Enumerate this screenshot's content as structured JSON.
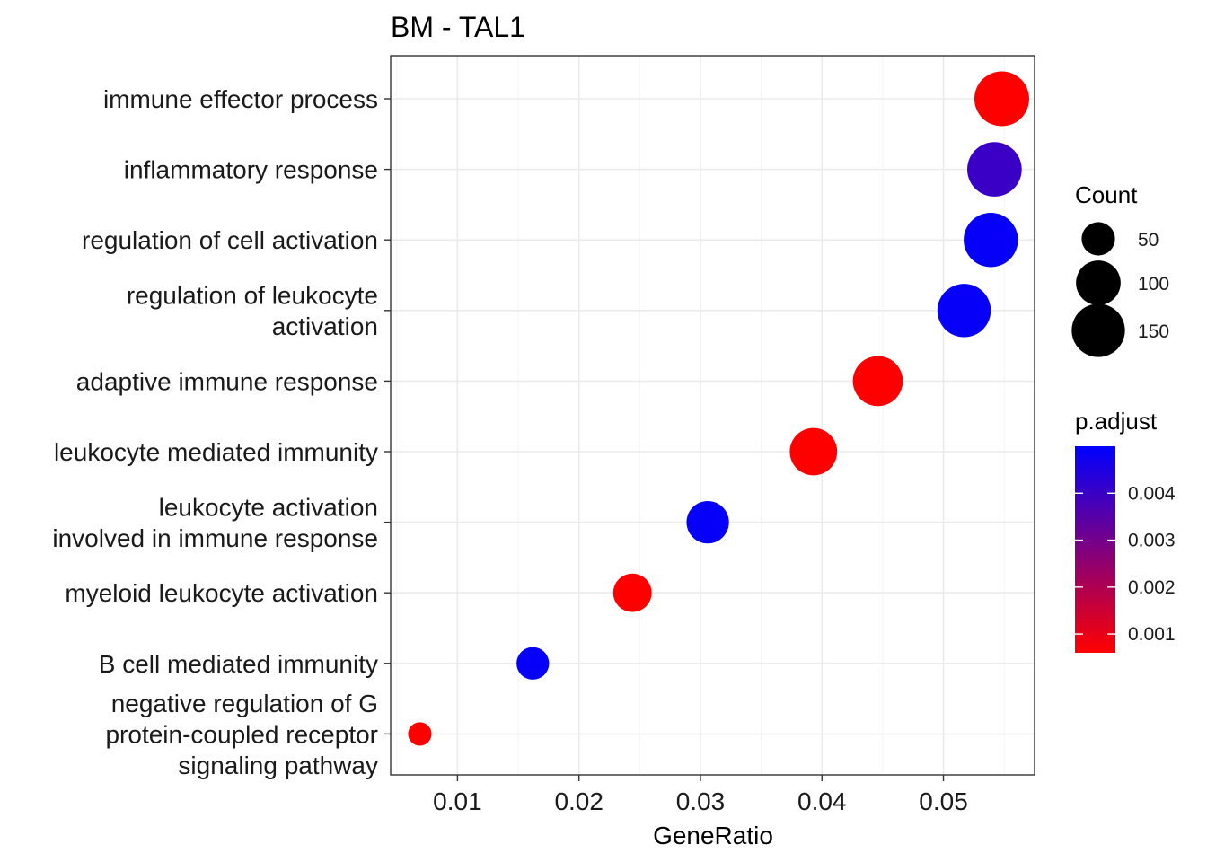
{
  "chart_data": {
    "type": "scatter",
    "title": "BM - TAL1",
    "xlabel": "GeneRatio",
    "ylabel": "",
    "xlim": [
      0.0045,
      0.0575
    ],
    "xticks": [
      0.01,
      0.02,
      0.03,
      0.04,
      0.05
    ],
    "xtick_labels": [
      "0.01",
      "0.02",
      "0.03",
      "0.04",
      "0.05"
    ],
    "grid": true,
    "terms": [
      {
        "label": [
          "immune effector process"
        ],
        "gene_ratio": 0.0548,
        "count": 160,
        "p_adjust": 0.0003
      },
      {
        "label": [
          "inflammatory response"
        ],
        "gene_ratio": 0.0542,
        "count": 158,
        "p_adjust": 0.004
      },
      {
        "label": [
          "regulation of cell activation"
        ],
        "gene_ratio": 0.0539,
        "count": 157,
        "p_adjust": 0.0049
      },
      {
        "label": [
          "regulation of leukocyte",
          "activation"
        ],
        "gene_ratio": 0.0517,
        "count": 151,
        "p_adjust": 0.0049
      },
      {
        "label": [
          "adaptive immune response"
        ],
        "gene_ratio": 0.0446,
        "count": 130,
        "p_adjust": 0.0003
      },
      {
        "label": [
          "leukocyte mediated immunity"
        ],
        "gene_ratio": 0.0393,
        "count": 115,
        "p_adjust": 0.0004
      },
      {
        "label": [
          "leukocyte activation",
          "involved in immune response"
        ],
        "gene_ratio": 0.0306,
        "count": 89,
        "p_adjust": 0.0049
      },
      {
        "label": [
          "myeloid leukocyte activation"
        ],
        "gene_ratio": 0.0244,
        "count": 71,
        "p_adjust": 0.0004
      },
      {
        "label": [
          "B cell mediated immunity"
        ],
        "gene_ratio": 0.0162,
        "count": 47,
        "p_adjust": 0.0049
      },
      {
        "label": [
          "negative regulation of G",
          "protein-coupled receptor",
          "signaling pathway"
        ],
        "gene_ratio": 0.0069,
        "count": 20,
        "p_adjust": 0.0003
      }
    ],
    "legend": {
      "position": "right",
      "size": {
        "title": "Count",
        "values": [
          50,
          100,
          150
        ],
        "labels": [
          "50",
          "100",
          "150"
        ]
      },
      "color": {
        "title": "p.adjust",
        "low_color": "#ff0000",
        "high_color": "#0000ff",
        "range": [
          0.0006,
          0.005
        ],
        "breaks": [
          0.001,
          0.002,
          0.003,
          0.004
        ],
        "labels": [
          "0.001",
          "0.002",
          "0.003",
          "0.004"
        ]
      }
    }
  }
}
